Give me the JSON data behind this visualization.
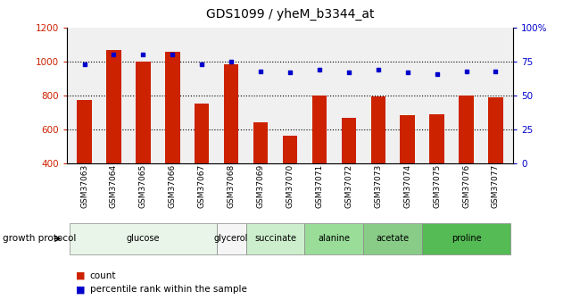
{
  "title": "GDS1099 / yheM_b3344_at",
  "categories": [
    "GSM37063",
    "GSM37064",
    "GSM37065",
    "GSM37066",
    "GSM37067",
    "GSM37068",
    "GSM37069",
    "GSM37070",
    "GSM37071",
    "GSM37072",
    "GSM37073",
    "GSM37074",
    "GSM37075",
    "GSM37076",
    "GSM37077"
  ],
  "bar_values": [
    775,
    1070,
    1000,
    1060,
    750,
    985,
    640,
    560,
    800,
    670,
    795,
    685,
    690,
    800,
    790
  ],
  "bar_color": "#cc2200",
  "dot_values": [
    73,
    80,
    80,
    80,
    73,
    75,
    68,
    67,
    69,
    67,
    69,
    67,
    66,
    68,
    68
  ],
  "dot_color": "#0000cc",
  "ylim_left": [
    400,
    1200
  ],
  "ylim_right": [
    0,
    100
  ],
  "yticks_left": [
    400,
    600,
    800,
    1000,
    1200
  ],
  "yticks_right": [
    0,
    25,
    50,
    75,
    100
  ],
  "yticklabels_right": [
    "0",
    "25",
    "50",
    "75",
    "100%"
  ],
  "groups": [
    {
      "label": "glucose",
      "indices": [
        0,
        1,
        2,
        3,
        4
      ],
      "color": "#e8f5e8"
    },
    {
      "label": "glycerol",
      "indices": [
        5
      ],
      "color": "#f5f5f5"
    },
    {
      "label": "succinate",
      "indices": [
        6,
        7
      ],
      "color": "#cceecc"
    },
    {
      "label": "alanine",
      "indices": [
        8,
        9
      ],
      "color": "#99dd99"
    },
    {
      "label": "acetate",
      "indices": [
        10,
        11
      ],
      "color": "#88cc88"
    },
    {
      "label": "proline",
      "indices": [
        12,
        13,
        14
      ],
      "color": "#55bb55"
    }
  ],
  "growth_protocol_label": "growth protocol",
  "legend_count_label": "count",
  "legend_pct_label": "percentile rank within the sample",
  "bar_width": 0.5,
  "background_color": "#ffffff",
  "tick_color_left": "#cc2200",
  "tick_color_right": "#0000cc",
  "plot_bg": "#f0f0f0"
}
